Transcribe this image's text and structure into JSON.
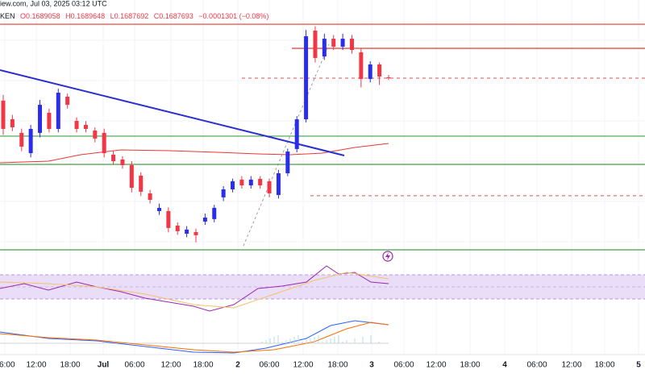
{
  "chart_data": {
    "type": "candlestick",
    "header": {
      "source": "iew.com, Jul 03, 2025 03:12 UTC",
      "symbol": "KEN",
      "open": "O0.1689058",
      "high": "H0.1689648",
      "low": "L0.1687692",
      "close": "C0.1687693",
      "change": "−0.0001301 (−0.08%)"
    },
    "xlabels": [
      "06:00",
      "12:00",
      "18:00",
      "Jul",
      "06:00",
      "12:00",
      "18:00",
      "2",
      "06:00",
      "12:00",
      "18:00",
      "3",
      "06:00",
      "12:00",
      "18:00",
      "4",
      "06:00",
      "12:00",
      "18:00",
      "5"
    ],
    "ylim": [
      0.155,
      0.175
    ],
    "up_color": "#2a2eec",
    "down_color": "#f23645",
    "open": [
      0.16694,
      0.16545,
      0.16436,
      0.16274,
      0.16436,
      0.16597,
      0.16468,
      0.16726,
      0.16532,
      0.165,
      0.16455,
      0.16436,
      0.16262,
      0.16223,
      0.16178,
      0.16094,
      0.15952,
      0.1581,
      0.1581,
      0.15694,
      0.15629,
      0.15642,
      0.15726,
      0.15746,
      0.1592,
      0.15984,
      0.16062,
      0.16016,
      0.16068,
      0.16049,
      0.15939,
      0.16113,
      0.16307,
      0.16545,
      0.17255,
      0.17048,
      0.1719,
      0.17126,
      0.1719,
      0.17081,
      0.16868,
      0.16984,
      0.16881
    ],
    "high": [
      0.1674,
      0.1658,
      0.1647,
      0.165,
      0.167,
      0.1663,
      0.1679,
      0.1675,
      0.1656,
      0.1653,
      0.1648,
      0.1647,
      0.1629,
      0.1625,
      0.1621,
      0.1612,
      0.1598,
      0.1587,
      0.1584,
      0.1572,
      0.1569,
      0.1567,
      0.1579,
      0.1586,
      0.1601,
      0.1607,
      0.1609,
      0.1609,
      0.1609,
      0.1607,
      0.1614,
      0.1631,
      0.1657,
      0.1726,
      0.1729,
      0.1723,
      0.1722,
      0.1723,
      0.1722,
      0.1711,
      0.1701,
      0.17,
      0.169
    ],
    "low": [
      0.1642,
      0.1645,
      0.1629,
      0.1624,
      0.164,
      0.1644,
      0.1644,
      0.1663,
      0.1644,
      0.1644,
      0.1636,
      0.1624,
      0.1618,
      0.1615,
      0.1596,
      0.1593,
      0.1587,
      0.1578,
      0.1564,
      0.1562,
      0.156,
      0.1556,
      0.157,
      0.1572,
      0.1589,
      0.1596,
      0.1599,
      0.1599,
      0.1599,
      0.1592,
      0.1591,
      0.1609,
      0.1628,
      0.1652,
      0.17,
      0.1702,
      0.171,
      0.171,
      0.1707,
      0.168,
      0.1684,
      0.1682,
      0.1686
    ],
    "close": [
      0.16468,
      0.16481,
      0.16326,
      0.16468,
      0.16661,
      0.16468,
      0.16758,
      0.16661,
      0.16468,
      0.16468,
      0.16391,
      0.16274,
      0.1621,
      0.16178,
      0.15997,
      0.15965,
      0.159,
      0.15836,
      0.15675,
      0.15649,
      0.15662,
      0.15617,
      0.15758,
      0.15836,
      0.15984,
      0.16049,
      0.16016,
      0.16062,
      0.16016,
      0.15952,
      0.16113,
      0.16287,
      0.16545,
      0.1721,
      0.17036,
      0.1719,
      0.17126,
      0.1719,
      0.171,
      0.16868,
      0.16984,
      0.16887,
      0.16874
    ],
    "levels": [
      {
        "value": 0.17306,
        "color": "#e53935",
        "style": "solid"
      },
      {
        "value": 0.17113,
        "color": "#e53935",
        "style": "solid"
      },
      {
        "value": 0.16874,
        "color": "#e57373",
        "style": "dashed"
      },
      {
        "value": 0.1641,
        "color": "#43a047",
        "style": "solid"
      },
      {
        "value": 0.16184,
        "color": "#43a047",
        "style": "solid"
      },
      {
        "value": 0.15933,
        "color": "#e57373",
        "style": "dashed"
      },
      {
        "value": 0.155,
        "color": "#43a047",
        "style": "solid"
      }
    ],
    "trendline": {
      "values": [
        0.16939,
        0.16255
      ],
      "color": "#2a2ed0"
    }
  }
}
